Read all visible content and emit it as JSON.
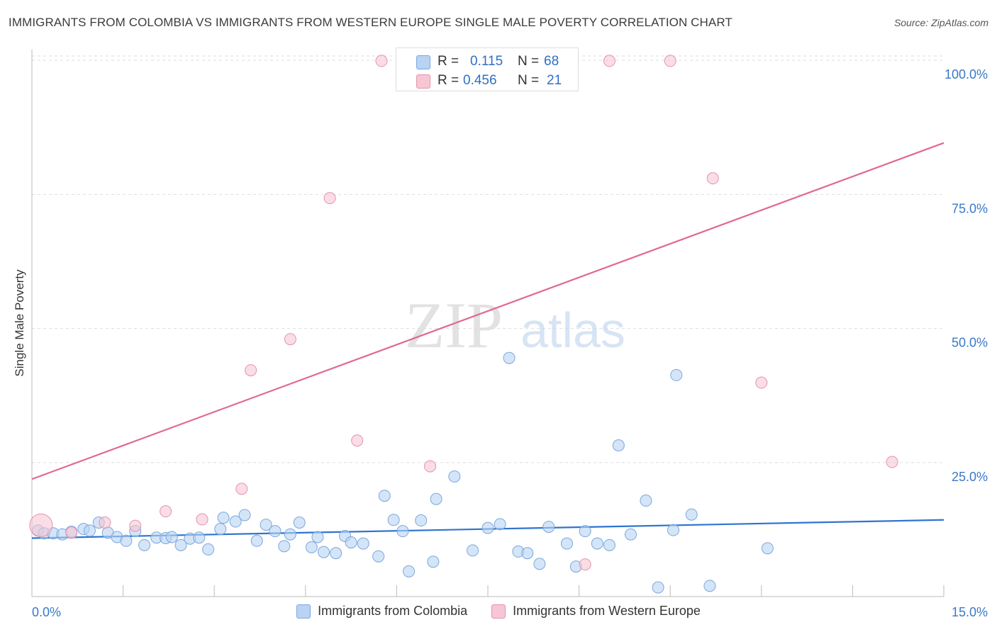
{
  "title": "IMMIGRANTS FROM COLOMBIA VS IMMIGRANTS FROM WESTERN EUROPE SINGLE MALE POVERTY CORRELATION CHART",
  "source": "Source: ZipAtlas.com",
  "watermark": {
    "zip": "ZIP",
    "atlas": "atlas"
  },
  "colors": {
    "blue_fill": "#b8d3f3",
    "blue_stroke": "#7aa7dd",
    "blue_line": "#2f74d0",
    "pink_fill": "#f7c6d4",
    "pink_stroke": "#e493ad",
    "pink_line": "#e0698f",
    "axis_text": "#3a78c8",
    "grid": "#dddddd"
  },
  "stats": {
    "rows": [
      {
        "r_label": "R =",
        "r_value": "0.115",
        "n_label": "N =",
        "n_value": "68"
      },
      {
        "r_label": "R =",
        "r_value": "0.456",
        "n_label": "N =",
        "n_value": "21"
      }
    ]
  },
  "legend": {
    "blue_label": "Immigrants from Colombia",
    "pink_label": "Immigrants from Western Europe"
  },
  "chart_data": {
    "type": "scatter",
    "title": "IMMIGRANTS FROM COLOMBIA VS IMMIGRANTS FROM WESTERN EUROPE SINGLE MALE POVERTY CORRELATION CHART",
    "xlabel": "",
    "ylabel": "Single Male Poverty",
    "xlim": [
      0,
      15
    ],
    "ylim": [
      0,
      102
    ],
    "x_tick_labels": [
      {
        "value": 0,
        "label": "0.0%"
      },
      {
        "value": 15,
        "label": "15.0%"
      }
    ],
    "y_tick_labels": [
      {
        "value": 25,
        "label": "25.0%"
      },
      {
        "value": 50,
        "label": "50.0%"
      },
      {
        "value": 75,
        "label": "75.0%"
      },
      {
        "value": 100,
        "label": "100.0%"
      }
    ],
    "grid": true,
    "legend_position": "bottom",
    "series": [
      {
        "name": "Immigrants from Colombia",
        "color": "#b8d3f3",
        "trend": {
          "x": [
            0,
            15
          ],
          "y": [
            10.9,
            14.3
          ]
        },
        "points": [
          [
            0.1,
            12.3
          ],
          [
            0.2,
            11.8
          ],
          [
            0.35,
            11.8
          ],
          [
            0.5,
            11.6
          ],
          [
            0.65,
            12.1
          ],
          [
            0.85,
            12.6
          ],
          [
            0.95,
            12.3
          ],
          [
            1.1,
            13.8
          ],
          [
            1.25,
            11.9
          ],
          [
            1.4,
            11.1
          ],
          [
            1.55,
            10.4
          ],
          [
            1.7,
            12.2
          ],
          [
            1.85,
            9.6
          ],
          [
            2.05,
            11.0
          ],
          [
            2.2,
            10.9
          ],
          [
            2.3,
            11.1
          ],
          [
            2.45,
            9.6
          ],
          [
            2.6,
            10.8
          ],
          [
            2.75,
            11.0
          ],
          [
            2.9,
            8.8
          ],
          [
            3.1,
            12.6
          ],
          [
            3.15,
            14.7
          ],
          [
            3.35,
            14.0
          ],
          [
            3.5,
            15.2
          ],
          [
            3.7,
            10.4
          ],
          [
            3.85,
            13.4
          ],
          [
            4.0,
            12.2
          ],
          [
            4.15,
            9.4
          ],
          [
            4.25,
            11.6
          ],
          [
            4.4,
            13.8
          ],
          [
            4.6,
            9.2
          ],
          [
            4.7,
            11.1
          ],
          [
            4.8,
            8.3
          ],
          [
            5.0,
            8.1
          ],
          [
            5.15,
            11.3
          ],
          [
            5.25,
            10.1
          ],
          [
            5.45,
            9.9
          ],
          [
            5.7,
            7.5
          ],
          [
            5.8,
            18.8
          ],
          [
            5.95,
            14.3
          ],
          [
            6.1,
            12.2
          ],
          [
            6.2,
            4.7
          ],
          [
            6.4,
            14.2
          ],
          [
            6.6,
            6.5
          ],
          [
            6.65,
            18.2
          ],
          [
            6.95,
            22.4
          ],
          [
            7.25,
            8.6
          ],
          [
            7.5,
            12.8
          ],
          [
            7.7,
            13.5
          ],
          [
            7.85,
            44.5
          ],
          [
            8.0,
            8.4
          ],
          [
            8.15,
            8.1
          ],
          [
            8.35,
            6.1
          ],
          [
            8.5,
            13.0
          ],
          [
            8.8,
            9.9
          ],
          [
            8.95,
            5.6
          ],
          [
            9.1,
            12.2
          ],
          [
            9.3,
            9.9
          ],
          [
            9.5,
            9.6
          ],
          [
            9.65,
            28.2
          ],
          [
            9.85,
            11.6
          ],
          [
            10.1,
            17.9
          ],
          [
            10.3,
            1.7
          ],
          [
            10.55,
            12.4
          ],
          [
            10.6,
            41.3
          ],
          [
            10.85,
            15.3
          ],
          [
            11.15,
            2.0
          ],
          [
            12.1,
            9.0
          ]
        ]
      },
      {
        "name": "Immigrants from Western Europe",
        "color": "#f7c6d4",
        "trend": {
          "x": [
            0,
            15
          ],
          "y": [
            21.9,
            84.6
          ]
        },
        "points": [
          [
            0.15,
            13.3
          ],
          [
            0.65,
            11.9
          ],
          [
            1.2,
            13.8
          ],
          [
            1.7,
            13.2
          ],
          [
            2.2,
            15.9
          ],
          [
            2.8,
            14.4
          ],
          [
            3.45,
            20.1
          ],
          [
            3.6,
            42.2
          ],
          [
            4.25,
            48.0
          ],
          [
            4.9,
            74.3
          ],
          [
            5.35,
            29.1
          ],
          [
            5.75,
            99.9
          ],
          [
            6.55,
            24.3
          ],
          [
            7.1,
            99.9
          ],
          [
            8.0,
            99.9
          ],
          [
            9.1,
            6.0
          ],
          [
            9.5,
            99.9
          ],
          [
            10.5,
            99.9
          ],
          [
            11.2,
            78.0
          ],
          [
            12.0,
            39.9
          ],
          [
            14.15,
            25.1
          ]
        ]
      }
    ]
  }
}
